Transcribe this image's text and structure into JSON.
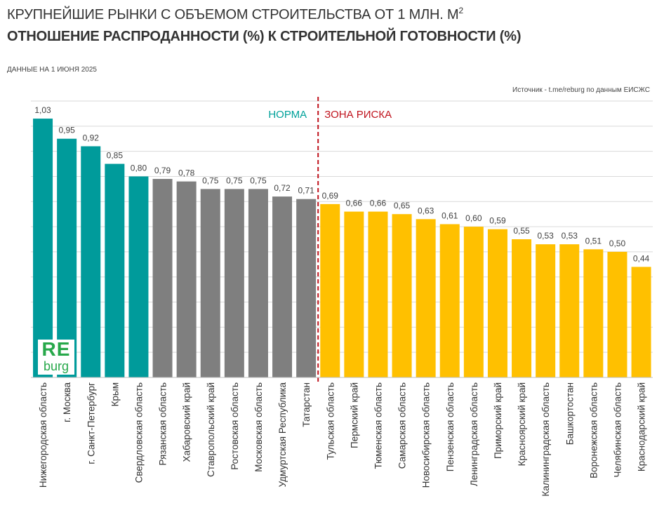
{
  "header": {
    "title_line1": "КРУПНЕЙШИЕ РЫНКИ С ОБЪЕМОМ СТРОИТЕЛЬСТВА ОТ 1 МЛН. М",
    "title_sup": "2",
    "title_line2": "ОТНОШЕНИЕ РАСПРОДАННОСТИ (%) К СТРОИТЕЛЬНОЙ ГОТОВНОСТИ (%)",
    "date": "ДАННЫЕ НА 1 ИЮНЯ 2025",
    "source": "Источник - t.me/reburg по данным ЕИСЖС"
  },
  "logo": {
    "top": "RE",
    "bottom": "burg"
  },
  "colors": {
    "teal": "#009b9b",
    "gray": "#7f7f7f",
    "yellow": "#ffc000",
    "norma": "#00a19a",
    "risk": "#c0141e",
    "grid": "#d9d9d9"
  },
  "chart_data": {
    "type": "bar",
    "title": "ОТНОШЕНИЕ РАСПРОДАННОСТИ (%) К СТРОИТЕЛЬНОЙ ГОТОВНОСТИ (%)",
    "xlabel": "",
    "ylabel": "",
    "ylim": [
      0,
      1.1
    ],
    "grid": true,
    "categories": [
      "Нижегородская область",
      "г. Москва",
      "г. Санкт-Петербург",
      "Крым",
      "Свердловская область",
      "Рязанская область",
      "Хабаровский край",
      "Ставропольский край",
      "Ростовская область",
      "Московская область",
      "Удмуртская Республика",
      "Татарстан",
      "Тульская область",
      "Пермский край",
      "Тюменская область",
      "Самарская область",
      "Новосибирская область",
      "Пензенская область",
      "Ленинградская область",
      "Приморский край",
      "Красноярский край",
      "Калининградская область",
      "Башкортостан",
      "Воронежская область",
      "Челябинская область",
      "Краснодарский край"
    ],
    "values": [
      1.03,
      0.95,
      0.92,
      0.85,
      0.8,
      0.79,
      0.78,
      0.75,
      0.75,
      0.75,
      0.72,
      0.71,
      0.69,
      0.66,
      0.66,
      0.65,
      0.63,
      0.61,
      0.6,
      0.59,
      0.55,
      0.53,
      0.53,
      0.51,
      0.5,
      0.44
    ],
    "value_labels": [
      "1,03",
      "0,95",
      "0,92",
      "0,85",
      "0,80",
      "0,79",
      "0,78",
      "0,75",
      "0,75",
      "0,75",
      "0,72",
      "0,71",
      "0,69",
      "0,66",
      "0,66",
      "0,65",
      "0,63",
      "0,61",
      "0,60",
      "0,59",
      "0,55",
      "0,53",
      "0,53",
      "0,51",
      "0,50",
      "0,44"
    ],
    "groups": [
      "teal",
      "teal",
      "teal",
      "teal",
      "teal",
      "gray",
      "gray",
      "gray",
      "gray",
      "gray",
      "gray",
      "gray",
      "yellow",
      "yellow",
      "yellow",
      "yellow",
      "yellow",
      "yellow",
      "yellow",
      "yellow",
      "yellow",
      "yellow",
      "yellow",
      "yellow",
      "yellow",
      "yellow"
    ],
    "annotations": {
      "norma": "НОРМА",
      "risk": "ЗОНА РИСКА",
      "divider_after_index": 11
    }
  }
}
